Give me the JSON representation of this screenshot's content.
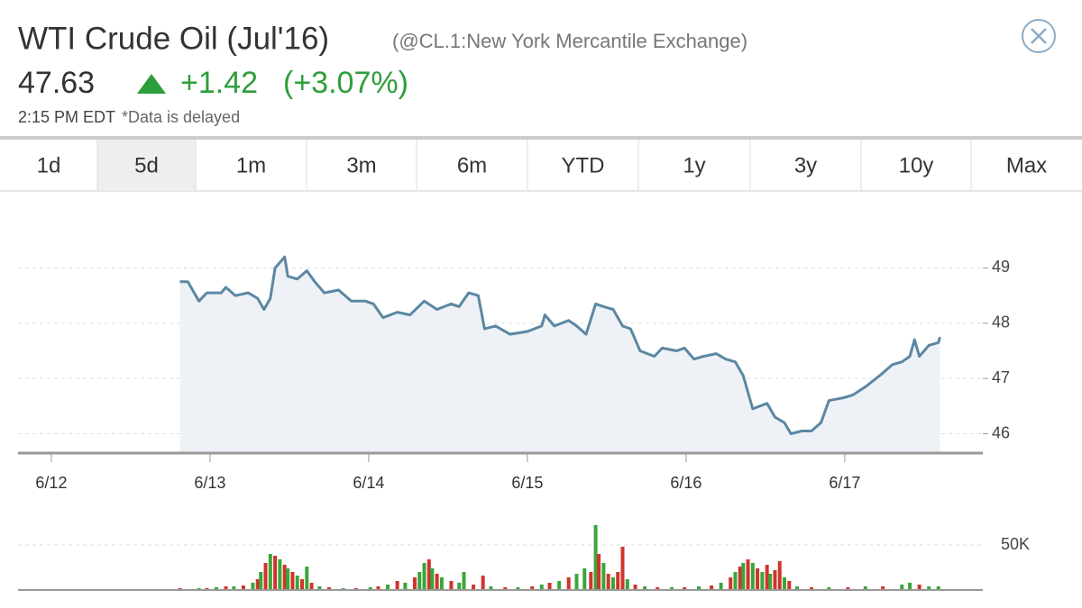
{
  "header": {
    "title": "WTI Crude Oil (Jul'16)",
    "exchange": "(@CL.1:New York Mercantile Exchange)",
    "price": "47.63",
    "change": "+1.42",
    "change_pct": "(+3.07%)",
    "time": "2:15 PM EDT",
    "note": "*Data is delayed"
  },
  "tabs": {
    "items": [
      "1d",
      "5d",
      "1m",
      "3m",
      "6m",
      "YTD",
      "1y",
      "3y",
      "10y",
      "Max"
    ],
    "active": 1
  },
  "chart_data": [
    {
      "type": "area",
      "color": "#5b87a3",
      "fill_color": "#eef2f6",
      "grid": true,
      "xlim": [
        -0.21,
        5.87
      ],
      "ylim": [
        45.65,
        50.1
      ],
      "yticks": [
        46,
        47,
        48,
        49
      ],
      "xticks": [
        {
          "value": 0,
          "label": "6/12"
        },
        {
          "value": 1,
          "label": "6/13"
        },
        {
          "value": 2,
          "label": "6/14"
        },
        {
          "value": 3,
          "label": "6/15"
        },
        {
          "value": 4,
          "label": "6/16"
        },
        {
          "value": 5,
          "label": "6/17"
        }
      ],
      "x": [
        0.81,
        0.86,
        0.93,
        0.98,
        1.07,
        1.1,
        1.16,
        1.24,
        1.3,
        1.34,
        1.38,
        1.41,
        1.47,
        1.49,
        1.55,
        1.61,
        1.66,
        1.72,
        1.81,
        1.89,
        1.98,
        2.03,
        2.09,
        2.18,
        2.26,
        2.35,
        2.43,
        2.52,
        2.57,
        2.63,
        2.69,
        2.73,
        2.8,
        2.89,
        3.0,
        3.09,
        3.11,
        3.17,
        3.26,
        3.31,
        3.37,
        3.43,
        3.48,
        3.54,
        3.6,
        3.65,
        3.71,
        3.8,
        3.85,
        3.94,
        3.99,
        4.05,
        4.11,
        4.19,
        4.25,
        4.31,
        4.36,
        4.42,
        4.51,
        4.56,
        4.62,
        4.66,
        4.73,
        4.79,
        4.85,
        4.9,
        4.99,
        5.05,
        5.13,
        5.22,
        5.3,
        5.36,
        5.41,
        5.44,
        5.47,
        5.53,
        5.59,
        5.6
      ],
      "values": [
        48.75,
        48.75,
        48.4,
        48.55,
        48.55,
        48.65,
        48.5,
        48.55,
        48.45,
        48.25,
        48.45,
        49.0,
        49.2,
        48.85,
        48.8,
        48.95,
        48.75,
        48.55,
        48.6,
        48.4,
        48.4,
        48.35,
        48.1,
        48.2,
        48.15,
        48.4,
        48.25,
        48.35,
        48.3,
        48.55,
        48.5,
        47.9,
        47.95,
        47.8,
        47.85,
        47.95,
        48.15,
        47.95,
        48.05,
        47.95,
        47.8,
        48.35,
        48.3,
        48.25,
        47.95,
        47.9,
        47.5,
        47.4,
        47.55,
        47.5,
        47.55,
        47.35,
        47.4,
        47.45,
        47.35,
        47.3,
        47.05,
        46.45,
        46.55,
        46.3,
        46.2,
        46.0,
        46.05,
        46.05,
        46.2,
        46.6,
        46.65,
        46.7,
        46.85,
        47.05,
        47.25,
        47.3,
        47.4,
        47.7,
        47.4,
        47.6,
        47.65,
        47.75
      ]
    },
    {
      "type": "bar",
      "grid": true,
      "xlim": [
        -0.21,
        5.87
      ],
      "ylim": [
        0,
        80000
      ],
      "yticks": [
        {
          "value": 50000,
          "label": "50K"
        }
      ],
      "x": [
        0.81,
        0.87,
        0.93,
        0.98,
        1.04,
        1.1,
        1.15,
        1.21,
        1.27,
        1.3,
        1.32,
        1.35,
        1.38,
        1.41,
        1.44,
        1.47,
        1.49,
        1.52,
        1.55,
        1.58,
        1.61,
        1.64,
        1.69,
        1.75,
        1.84,
        1.92,
        2.01,
        2.06,
        2.12,
        2.18,
        2.23,
        2.29,
        2.32,
        2.35,
        2.38,
        2.4,
        2.43,
        2.46,
        2.52,
        2.57,
        2.6,
        2.66,
        2.72,
        2.77,
        2.86,
        2.94,
        3.03,
        3.09,
        3.14,
        3.2,
        3.26,
        3.31,
        3.36,
        3.4,
        3.43,
        3.45,
        3.48,
        3.51,
        3.54,
        3.57,
        3.6,
        3.63,
        3.68,
        3.74,
        3.82,
        3.91,
        3.99,
        4.08,
        4.16,
        4.22,
        4.28,
        4.31,
        4.34,
        4.36,
        4.39,
        4.42,
        4.45,
        4.48,
        4.51,
        4.53,
        4.56,
        4.59,
        4.62,
        4.65,
        4.7,
        4.79,
        4.9,
        5.02,
        5.13,
        5.24,
        5.36,
        5.41,
        5.47,
        5.53,
        5.59
      ],
      "values": [
        2000,
        1000,
        2000,
        2000,
        3000,
        4000,
        4000,
        5000,
        8000,
        12000,
        20000,
        30000,
        40000,
        38000,
        34000,
        28000,
        24000,
        20000,
        16000,
        12000,
        26000,
        8000,
        4000,
        3000,
        2000,
        2000,
        3000,
        4000,
        6000,
        10000,
        8000,
        14000,
        20000,
        30000,
        34000,
        24000,
        18000,
        14000,
        10000,
        8000,
        20000,
        6000,
        16000,
        4000,
        3000,
        3000,
        4000,
        6000,
        8000,
        10000,
        14000,
        18000,
        24000,
        20000,
        72000,
        40000,
        30000,
        18000,
        14000,
        20000,
        48000,
        12000,
        6000,
        4000,
        3000,
        3000,
        3000,
        4000,
        5000,
        8000,
        14000,
        20000,
        26000,
        30000,
        34000,
        30000,
        24000,
        20000,
        28000,
        18000,
        22000,
        32000,
        14000,
        10000,
        4000,
        3000,
        3000,
        3000,
        4000,
        4000,
        6000,
        8000,
        6000,
        4000,
        4000
      ],
      "colors": [
        "#d0342c",
        "#3aa53a",
        "#3aa53a",
        "#d0342c",
        "#3aa53a",
        "#d0342c",
        "#3aa53a",
        "#d0342c",
        "#3aa53a",
        "#d0342c",
        "#3aa53a",
        "#d0342c",
        "#3aa53a",
        "#d0342c",
        "#3aa53a",
        "#d0342c",
        "#3aa53a",
        "#d0342c",
        "#3aa53a",
        "#d0342c",
        "#3aa53a",
        "#d0342c",
        "#3aa53a",
        "#d0342c",
        "#3aa53a",
        "#d0342c",
        "#3aa53a",
        "#d0342c",
        "#3aa53a",
        "#d0342c",
        "#3aa53a",
        "#d0342c",
        "#3aa53a",
        "#3aa53a",
        "#d0342c",
        "#3aa53a",
        "#d0342c",
        "#3aa53a",
        "#d0342c",
        "#3aa53a",
        "#3aa53a",
        "#d0342c",
        "#d0342c",
        "#3aa53a",
        "#d0342c",
        "#3aa53a",
        "#d0342c",
        "#3aa53a",
        "#d0342c",
        "#3aa53a",
        "#d0342c",
        "#3aa53a",
        "#3aa53a",
        "#d0342c",
        "#3aa53a",
        "#d0342c",
        "#3aa53a",
        "#d0342c",
        "#3aa53a",
        "#d0342c",
        "#d0342c",
        "#3aa53a",
        "#d0342c",
        "#3aa53a",
        "#d0342c",
        "#3aa53a",
        "#d0342c",
        "#3aa53a",
        "#d0342c",
        "#3aa53a",
        "#d0342c",
        "#3aa53a",
        "#d0342c",
        "#3aa53a",
        "#d0342c",
        "#3aa53a",
        "#d0342c",
        "#3aa53a",
        "#d0342c",
        "#3aa53a",
        "#d0342c",
        "#d0342c",
        "#3aa53a",
        "#d0342c",
        "#3aa53a",
        "#d0342c",
        "#3aa53a",
        "#d0342c",
        "#3aa53a",
        "#d0342c",
        "#3aa53a",
        "#3aa53a",
        "#d0342c",
        "#3aa53a",
        "#3aa53a"
      ]
    }
  ]
}
